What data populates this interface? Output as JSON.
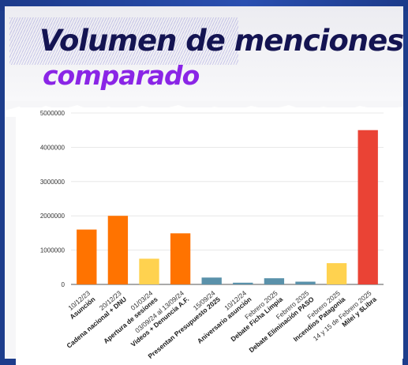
{
  "header": {
    "title": "Volumen de menciones",
    "subtitle": "comparado"
  },
  "colors": {
    "orange": "#ff7300",
    "yellow": "#ffd24f",
    "steel": "#5a91aa",
    "red": "#ea4335",
    "title": "#141452",
    "subtitle": "#8a25e6"
  },
  "chart_data": {
    "type": "bar",
    "ylim": [
      0,
      5000000
    ],
    "yticks": [
      0,
      1000000,
      2000000,
      3000000,
      4000000,
      5000000
    ],
    "grid": true,
    "categories": [
      {
        "date": "10/12/23",
        "label": "Asunción",
        "value": 1600000,
        "color": "#ff7300"
      },
      {
        "date": "20/12/23",
        "label": "Cadena nacional + DNU",
        "value": 2000000,
        "color": "#ff7300"
      },
      {
        "date": "01/03/24",
        "label": "Apertura de sesiones",
        "value": 750000,
        "color": "#ffd24f"
      },
      {
        "date": "03/09/24 al 13/09/24",
        "label": "Videos + Denuncia A.F.",
        "value": 1490000,
        "color": "#ff7300"
      },
      {
        "date": "15/09/24",
        "label": "Presentan Presupuesto 2025",
        "value": 200000,
        "color": "#5a91aa"
      },
      {
        "date": "10/12/24",
        "label": "Aniversario asunción",
        "value": 50000,
        "color": "#5a91aa"
      },
      {
        "date": "Febrero 2025",
        "label": "Debate Ficha Limpia",
        "value": 180000,
        "color": "#5a91aa"
      },
      {
        "date": "Febrero 2025",
        "label": "Debate Eliminación PASO",
        "value": 80000,
        "color": "#5a91aa"
      },
      {
        "date": "Febrero 2025",
        "label": "Incendios Patagonia",
        "value": 620000,
        "color": "#ffd24f"
      },
      {
        "date": "14 y 15 de Febrero 2025",
        "label": "Milei y $Libra",
        "value": 4500000,
        "color": "#ea4335"
      }
    ]
  }
}
